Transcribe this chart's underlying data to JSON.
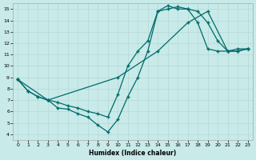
{
  "xlabel": "Humidex (Indice chaleur)",
  "bg_color": "#c8eae8",
  "line_color": "#006b6b",
  "xlim": [
    -0.5,
    23.5
  ],
  "ylim": [
    3.5,
    15.5
  ],
  "xticks": [
    0,
    1,
    2,
    3,
    4,
    5,
    6,
    7,
    8,
    9,
    10,
    11,
    12,
    13,
    14,
    15,
    16,
    17,
    18,
    19,
    20,
    21,
    22,
    23
  ],
  "yticks": [
    4,
    5,
    6,
    7,
    8,
    9,
    10,
    11,
    12,
    13,
    14,
    15
  ],
  "line1_x": [
    0,
    1,
    2,
    3,
    4,
    5,
    6,
    7,
    8,
    9,
    10,
    11,
    12,
    13,
    14,
    15,
    16,
    17,
    18,
    19,
    20,
    21,
    22,
    23
  ],
  "line1_y": [
    8.8,
    7.8,
    7.3,
    7.0,
    6.8,
    6.5,
    6.3,
    6.0,
    5.8,
    5.5,
    7.5,
    10.0,
    11.3,
    12.2,
    14.8,
    15.0,
    15.2,
    15.0,
    14.8,
    13.8,
    12.2,
    11.3,
    11.3,
    11.5
  ],
  "line2_x": [
    0,
    1,
    2,
    3,
    4,
    5,
    6,
    7,
    8,
    9,
    10,
    11,
    12,
    13,
    14,
    15,
    16,
    17,
    18,
    19,
    20,
    21,
    22,
    23
  ],
  "line2_y": [
    8.8,
    7.8,
    7.3,
    7.0,
    6.3,
    6.2,
    5.8,
    5.5,
    4.8,
    4.2,
    5.3,
    7.3,
    9.0,
    11.3,
    14.8,
    15.3,
    15.0,
    15.0,
    13.8,
    11.5,
    11.3,
    11.3,
    11.5,
    11.5
  ],
  "line3_x": [
    0,
    3,
    10,
    14,
    17,
    19,
    21,
    22,
    23
  ],
  "line3_y": [
    8.8,
    7.0,
    9.0,
    11.3,
    13.8,
    14.8,
    11.3,
    11.3,
    11.5
  ]
}
